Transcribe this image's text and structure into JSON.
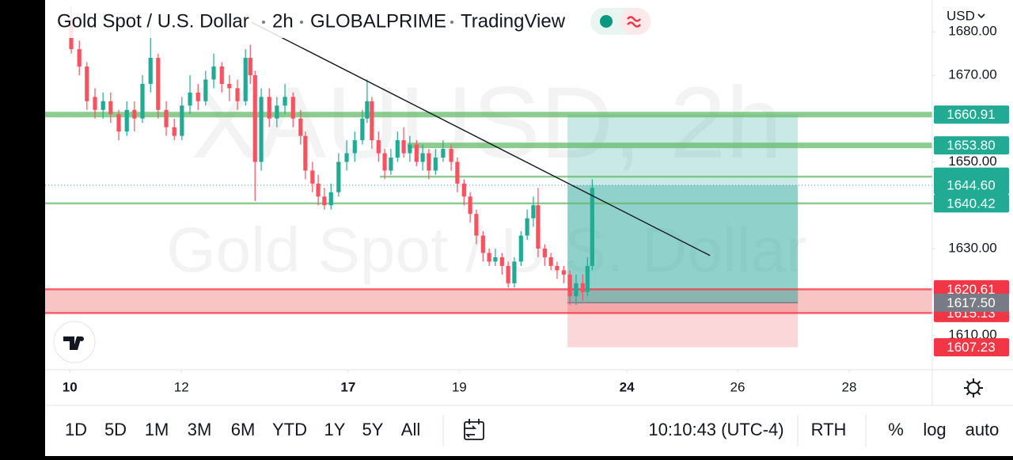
{
  "header": {
    "title": "Gold Spot / U.S. Dollar",
    "interval": "2h",
    "exchange": "GLOBALPRIME",
    "brand": "TradingView",
    "currency": "USD"
  },
  "toolbar": {
    "ranges": [
      "1D",
      "5D",
      "1M",
      "3M",
      "6M",
      "YTD",
      "1Y",
      "5Y",
      "All"
    ],
    "time": "10:10:43 (UTC-4)",
    "session": "RTH",
    "percent": "%",
    "log": "log",
    "auto": "auto"
  },
  "chart_data": {
    "type": "candlestick",
    "watermark_symbol": "XAUUSD, 2h",
    "watermark_name": "Gold Spot / U.S. Dollar",
    "up_color": "#22ab94",
    "down_color": "#f7525f",
    "x": [
      5.5,
      7.2,
      8.8,
      10.5,
      12.2,
      13.8,
      15.5,
      17.2,
      18.8,
      20.5,
      22.2,
      23.8,
      25.5,
      27.2,
      28.8,
      30.5,
      32.2,
      33.8,
      35.5,
      37.2,
      38.8,
      40.5,
      42.2,
      43.2,
      44.2,
      45.5,
      47.2,
      48.8,
      50.5,
      52.2,
      53.8,
      54.8,
      56.3,
      57.5,
      58.8,
      60.2,
      61.8,
      63.5,
      65.2,
      66.8,
      67.8,
      68.8,
      70.2,
      71.5,
      72.8,
      74.2,
      75.5,
      76.8,
      78.2,
      79.5,
      80.8,
      82.2,
      83.8,
      85.5,
      86.8,
      88.2,
      89.5,
      90.8,
      92.2,
      93.5,
      94.8,
      96.2,
      97.5,
      98.8,
      100.2,
      101.5,
      102.8,
      103.8,
      105.2,
      106.5,
      107.8,
      109.2,
      110.5,
      111.8,
      113.2,
      114.2,
      115.2
    ],
    "open": [
      1683,
      1676,
      1672,
      1665,
      1662,
      1664,
      1661,
      1657,
      1662,
      1660,
      1668,
      1674,
      1662,
      1658,
      1656,
      1663,
      1666,
      1664,
      1669,
      1672,
      1668,
      1667,
      1664,
      1674,
      1670,
      1650,
      1665,
      1660,
      1663,
      1665,
      1660,
      1656,
      1648,
      1645,
      1642,
      1640,
      1643,
      1650,
      1652,
      1655,
      1660,
      1664,
      1655,
      1652,
      1648,
      1651,
      1655,
      1652,
      1654,
      1650,
      1652,
      1648,
      1651,
      1653,
      1650,
      1645,
      1642,
      1638,
      1633,
      1629,
      1627,
      1628,
      1626,
      1622,
      1627,
      1633,
      1637,
      1640,
      1630,
      1628,
      1626,
      1625,
      1624,
      1619,
      1622,
      1620,
      1626
    ],
    "high": [
      1686,
      1678,
      1673,
      1667,
      1666,
      1666,
      1662,
      1664,
      1664,
      1670,
      1682,
      1675,
      1664,
      1660,
      1665,
      1670,
      1668,
      1671,
      1675,
      1673,
      1670,
      1669,
      1676,
      1677,
      1671,
      1667,
      1667,
      1665,
      1668,
      1666,
      1662,
      1657,
      1650,
      1647,
      1644,
      1645,
      1652,
      1655,
      1657,
      1662,
      1669,
      1665,
      1657,
      1653,
      1653,
      1657,
      1658,
      1656,
      1655,
      1654,
      1653,
      1653,
      1655,
      1654,
      1651,
      1646,
      1643,
      1639,
      1634,
      1630,
      1630,
      1629,
      1627,
      1628,
      1634,
      1639,
      1642,
      1644,
      1631,
      1629,
      1627,
      1626,
      1625,
      1624,
      1624,
      1628,
      1646
    ],
    "low": [
      1675,
      1670,
      1662,
      1660,
      1660,
      1659,
      1655,
      1656,
      1657,
      1659,
      1666,
      1660,
      1656,
      1655,
      1655,
      1661,
      1662,
      1663,
      1667,
      1666,
      1664,
      1662,
      1663,
      1668,
      1641,
      1648,
      1658,
      1658,
      1661,
      1658,
      1654,
      1646,
      1643,
      1640,
      1639,
      1639,
      1642,
      1648,
      1650,
      1654,
      1659,
      1653,
      1650,
      1646,
      1647,
      1650,
      1651,
      1650,
      1649,
      1648,
      1646,
      1647,
      1650,
      1648,
      1643,
      1640,
      1636,
      1631,
      1627,
      1626,
      1626,
      1624,
      1621,
      1621,
      1626,
      1632,
      1635,
      1628,
      1626,
      1625,
      1623,
      1622,
      1617,
      1617,
      1618,
      1619,
      1625
    ],
    "close": [
      1676,
      1672,
      1664,
      1662,
      1664,
      1661,
      1657,
      1662,
      1660,
      1668,
      1674,
      1662,
      1658,
      1656,
      1663,
      1666,
      1664,
      1669,
      1672,
      1668,
      1667,
      1664,
      1674,
      1670,
      1650,
      1665,
      1660,
      1663,
      1665,
      1660,
      1656,
      1648,
      1645,
      1642,
      1640,
      1643,
      1650,
      1652,
      1655,
      1660,
      1664,
      1655,
      1652,
      1648,
      1651,
      1655,
      1652,
      1654,
      1650,
      1652,
      1648,
      1651,
      1653,
      1650,
      1645,
      1642,
      1638,
      1633,
      1629,
      1627,
      1628,
      1626,
      1622,
      1627,
      1633,
      1637,
      1640,
      1630,
      1628,
      1626,
      1625,
      1624,
      1619,
      1622,
      1620,
      1626,
      1644
    ],
    "xlim": [
      0,
      186.8
    ],
    "xticks": [
      {
        "value": 5.2,
        "label": "10"
      },
      {
        "value": 28.7,
        "label": "12"
      },
      {
        "value": 63.8,
        "label": "17"
      },
      {
        "value": 87.2,
        "label": "19"
      },
      {
        "value": 122.5,
        "label": "24"
      },
      {
        "value": 145.8,
        "label": "26"
      },
      {
        "value": 169.3,
        "label": "28"
      }
    ],
    "ylim": [
      1602.05,
      1687.35
    ],
    "yticks": [
      {
        "value": 1680,
        "label": "1680.00"
      },
      {
        "value": 1670,
        "label": "1670.00"
      },
      {
        "value": 1650,
        "label": "1650.00"
      },
      {
        "value": 1630,
        "label": "1630.00"
      },
      {
        "value": 1610,
        "label": "1610.00"
      }
    ],
    "levels": [
      {
        "value": 1660.91,
        "label": "1660.91",
        "color": "#66bb6a",
        "from": 0
      },
      {
        "value": 1653.8,
        "label": "1653.80",
        "color": "#66bb6a",
        "from": 76.3
      },
      {
        "value": 1646.6,
        "color": "#66bb6a",
        "from": 70.5
      },
      {
        "value": 1640.42,
        "label": "1640.42",
        "color": "#66bb6a",
        "from": 0
      },
      {
        "value": 1620.61,
        "label": "1620.61",
        "color": "#f23645",
        "from": 0
      },
      {
        "value": 1615.13,
        "label": "1615.13",
        "color": "#f23645",
        "from": 0
      }
    ],
    "zone_color": "#f8c4c4",
    "position": {
      "from": 110,
      "to": 158.5,
      "entry": 1617.5,
      "entry_label": "1617.50",
      "target": 1660.91,
      "stop": 1607.23
    },
    "current": {
      "value": 1644.6,
      "label": "1644.60"
    },
    "trendline": {
      "x": [
        43.5,
        140
      ],
      "y": [
        1682.2,
        1628.4
      ]
    }
  }
}
